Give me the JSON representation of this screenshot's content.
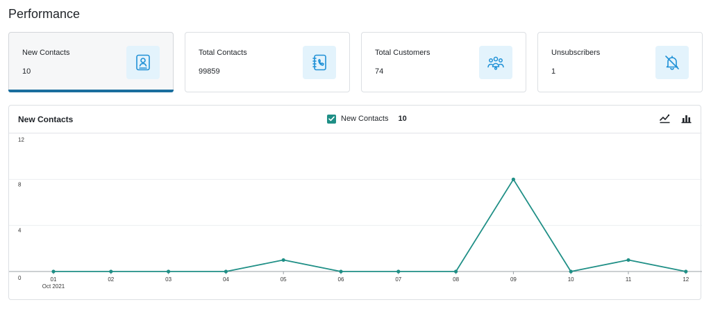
{
  "page": {
    "title": "Performance"
  },
  "cards": [
    {
      "label": "New Contacts",
      "value": "10",
      "icon": "contact-book-icon",
      "active": true
    },
    {
      "label": "Total Contacts",
      "value": "99859",
      "icon": "phone-book-icon",
      "active": false
    },
    {
      "label": "Total Customers",
      "value": "74",
      "icon": "group-icon",
      "active": false
    },
    {
      "label": "Unsubscribers",
      "value": "1",
      "icon": "bell-off-icon",
      "active": false
    }
  ],
  "panel": {
    "title": "New Contacts",
    "legend": {
      "label": "New Contacts",
      "value": "10",
      "checked": true
    },
    "tools": [
      "line-chart-icon",
      "bar-chart-icon"
    ]
  },
  "colors": {
    "accent": "#1f8f86",
    "active_underline": "#1a6e9e",
    "icon_bg": "#e3f3fc",
    "icon_stroke": "#1e90d6"
  },
  "chart_data": {
    "type": "line",
    "title": "",
    "xlabel": "",
    "ylabel": "",
    "categories": [
      "01",
      "02",
      "03",
      "04",
      "05",
      "06",
      "07",
      "08",
      "09",
      "10",
      "11",
      "12"
    ],
    "x_sublabel": "Oct 2021",
    "series": [
      {
        "name": "New Contacts",
        "values": [
          0,
          0,
          0,
          0,
          1,
          0,
          0,
          0,
          8,
          0,
          1,
          0
        ]
      }
    ],
    "ylim": [
      0,
      12
    ],
    "yticks": [
      0,
      4,
      8,
      12
    ],
    "grid": true,
    "legend": "top-center"
  }
}
